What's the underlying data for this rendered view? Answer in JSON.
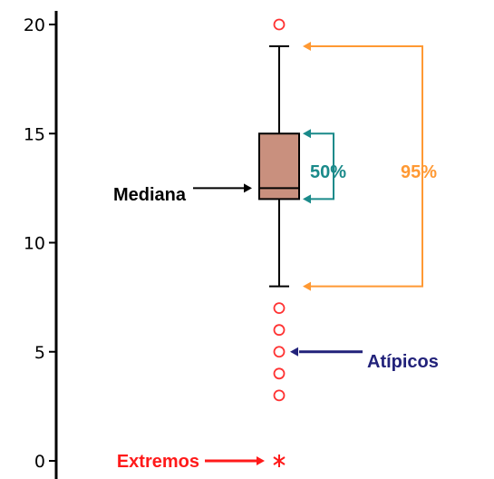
{
  "chart_data": {
    "type": "box",
    "yticks": [
      0,
      5,
      10,
      15,
      20
    ],
    "ylim": [
      0,
      20
    ],
    "box": {
      "whisker_low": 8,
      "q1": 12,
      "median": 12.5,
      "q3": 15,
      "whisker_high": 19,
      "outliers": [
        3,
        4,
        5,
        6,
        7,
        20
      ],
      "extremes": [
        0
      ]
    },
    "annotations": {
      "median_label": "Mediana",
      "iqr_label": "50%",
      "range_label": "95%",
      "outliers_label": "Atípicos",
      "extremes_label": "Extremos"
    }
  },
  "colors": {
    "box_fill": "#c9907e",
    "outlier": "#ff3333",
    "iqr_bracket": "#1a8a8a",
    "range_bracket": "#ff9933",
    "outliers_arrow": "#22227a",
    "extremes": "#ff1a1a",
    "median_text": "#000000"
  }
}
